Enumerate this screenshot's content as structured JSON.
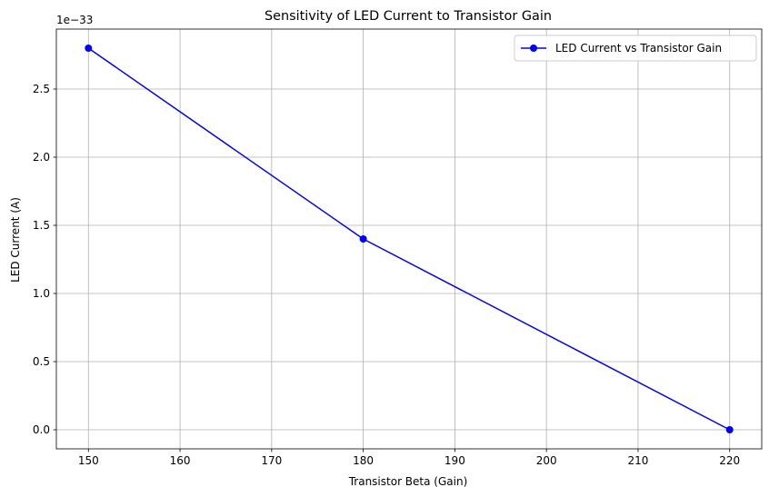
{
  "chart_data": {
    "type": "line",
    "title": "Sensitivity of LED Current to Transistor Gain",
    "xlabel": "Transistor Beta (Gain)",
    "ylabel": "LED Current (A)",
    "y_offset_label": "1e−33",
    "xlim": [
      146.5,
      223.5
    ],
    "ylim": [
      -0.14,
      2.94
    ],
    "y_scale_factor": 1e-33,
    "xticks": [
      150,
      160,
      170,
      180,
      190,
      200,
      210,
      220
    ],
    "yticks": [
      0.0,
      0.5,
      1.0,
      1.5,
      2.0,
      2.5
    ],
    "ytick_labels": [
      "0.0",
      "0.5",
      "1.0",
      "1.5",
      "2.0",
      "2.5"
    ],
    "grid": true,
    "legend_position": "upper right",
    "series": [
      {
        "name": "LED Current vs Transistor Gain",
        "color": "#0000ff",
        "marker": "circle",
        "x": [
          150,
          180,
          220
        ],
        "y": [
          2.8,
          1.4,
          0.0
        ]
      }
    ]
  }
}
